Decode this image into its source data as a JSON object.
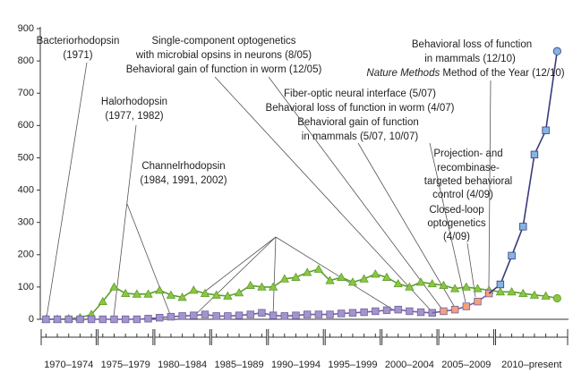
{
  "chart_data": {
    "type": "line",
    "x": [
      1970,
      1971,
      1972,
      1973,
      1974,
      1975,
      1976,
      1977,
      1978,
      1979,
      1980,
      1981,
      1982,
      1983,
      1984,
      1985,
      1986,
      1987,
      1988,
      1989,
      1990,
      1991,
      1992,
      1993,
      1994,
      1995,
      1996,
      1997,
      1998,
      1999,
      2000,
      2001,
      2002,
      2003,
      2004,
      2005,
      2006,
      2007,
      2008,
      2009,
      2010,
      2011,
      2012,
      2013,
      2014,
      2015
    ],
    "xlim": [
      1969.5,
      2016
    ],
    "ylim": [
      0,
      900
    ],
    "yticks": [
      0,
      100,
      200,
      300,
      400,
      500,
      600,
      700,
      800,
      900
    ],
    "period_labels": [
      "1970–1974",
      "1975–1979",
      "1980–1984",
      "1985–1989",
      "1990–1994",
      "1995–1999",
      "2000–2004",
      "2005–2009",
      "2010–present"
    ],
    "series": [
      {
        "color": "#8dc63f",
        "line_color": "#5c9e2e",
        "marker": "triangle",
        "last_marker": "circle",
        "values": [
          0,
          0,
          2,
          5,
          15,
          55,
          100,
          80,
          78,
          78,
          90,
          75,
          68,
          90,
          80,
          75,
          72,
          82,
          105,
          100,
          100,
          125,
          130,
          145,
          155,
          120,
          130,
          115,
          125,
          140,
          130,
          110,
          100,
          115,
          110,
          105,
          95,
          100,
          95,
          90,
          85,
          85,
          80,
          75,
          72,
          65
        ]
      },
      {
        "color": "#a394cc",
        "line_color": "#6f5fa0",
        "marker": "square",
        "values": [
          0,
          0,
          0,
          0,
          0,
          0,
          0,
          0,
          0,
          2,
          5,
          8,
          10,
          12,
          15,
          10,
          10,
          12,
          15,
          20,
          12,
          10,
          12,
          15,
          15,
          15,
          18,
          20,
          22,
          25,
          28,
          30,
          25,
          22,
          20,
          null,
          null,
          null,
          null,
          null,
          null,
          null,
          null,
          null,
          null,
          null
        ]
      },
      {
        "color": "#f4a07a",
        "line_color": "#6f5fa0",
        "marker": "square",
        "continues": true,
        "values": [
          null,
          null,
          null,
          null,
          null,
          null,
          null,
          null,
          null,
          null,
          null,
          null,
          null,
          null,
          null,
          null,
          null,
          null,
          null,
          null,
          null,
          null,
          null,
          null,
          null,
          null,
          null,
          null,
          null,
          null,
          null,
          null,
          null,
          null,
          null,
          25,
          30,
          40,
          55,
          80,
          null,
          null,
          null,
          null,
          null,
          null
        ]
      },
      {
        "color": "#82b4e4",
        "line_color": "#3a3a7c",
        "marker": "square",
        "last_marker": "circle",
        "continues": true,
        "values": [
          null,
          null,
          null,
          null,
          null,
          null,
          null,
          null,
          null,
          null,
          null,
          null,
          null,
          null,
          null,
          null,
          null,
          null,
          null,
          null,
          null,
          null,
          null,
          null,
          null,
          null,
          null,
          null,
          null,
          null,
          null,
          null,
          null,
          null,
          null,
          null,
          null,
          null,
          null,
          null,
          108,
          197,
          287,
          510,
          585,
          830
        ]
      }
    ],
    "annotations": [
      {
        "lines": [
          "Bacteriorhodopsin",
          "(1971)"
        ]
      },
      {
        "lines": [
          "Halorhodopsin",
          "(1977, 1982)"
        ]
      },
      {
        "lines": [
          "Channelrhodopsin",
          "(1984, 1991, 2002)"
        ]
      },
      {
        "lines": [
          "Single-component optogenetics",
          "with microbial opsins in neurons (8/05)",
          "Behavioral gain of function in worm (12/05)"
        ]
      },
      {
        "lines": [
          "Fiber-optic neural interface (5/07)",
          "Behavioral loss of function in worm (4/07)",
          "Behavioral gain of function",
          "in mammals (5/07, 10/07)"
        ]
      },
      {
        "lines": [
          "Behavioral loss of function",
          "in mammals (12/10)",
          [
            "Nature Methods",
            " Method of the Year (12/10)"
          ]
        ]
      },
      {
        "lines": [
          "Projection- and",
          "recombinase-",
          "targeted behavioral",
          "control (4/09)"
        ]
      },
      {
        "lines": [
          "Closed-loop",
          "optogenetics",
          "(4/09)"
        ]
      }
    ]
  }
}
